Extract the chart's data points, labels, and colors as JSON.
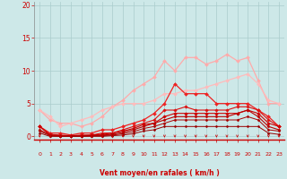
{
  "background_color": "#cde8e8",
  "grid_color": "#aacccc",
  "xlabel": "Vent moyen/en rafales ( km/h )",
  "xlabel_color": "#cc0000",
  "tick_color": "#cc0000",
  "xlim": [
    -0.5,
    23.5
  ],
  "ylim": [
    -0.5,
    20.5
  ],
  "yticks": [
    0,
    5,
    10,
    15,
    20
  ],
  "xticks": [
    0,
    1,
    2,
    3,
    4,
    5,
    6,
    7,
    8,
    9,
    10,
    11,
    12,
    13,
    14,
    15,
    16,
    17,
    18,
    19,
    20,
    21,
    22,
    23
  ],
  "series": [
    {
      "x": [
        0,
        1,
        2,
        3,
        4,
        5,
        6,
        7,
        8,
        9,
        10,
        11,
        12,
        13,
        14,
        15,
        16,
        17,
        18,
        19,
        20,
        21,
        22,
        23
      ],
      "y": [
        4,
        2.5,
        2.0,
        2.0,
        1.5,
        2.0,
        3.0,
        4.5,
        5.5,
        7.0,
        8.0,
        9.0,
        11.5,
        10.0,
        12.0,
        12.0,
        11.0,
        11.5,
        12.5,
        11.5,
        12.0,
        8.5,
        5.0,
        5.0
      ],
      "color": "#ffaaaa",
      "linewidth": 0.9,
      "marker": "D",
      "markersize": 2.0
    },
    {
      "x": [
        0,
        1,
        2,
        3,
        4,
        5,
        6,
        7,
        8,
        9,
        10,
        11,
        12,
        13,
        14,
        15,
        16,
        17,
        18,
        19,
        20,
        21,
        22,
        23
      ],
      "y": [
        4,
        3.0,
        1.5,
        2.0,
        2.5,
        3.0,
        4.0,
        4.5,
        5.0,
        5.0,
        5.0,
        5.5,
        6.5,
        6.5,
        7.0,
        7.0,
        7.5,
        8.0,
        8.5,
        9.0,
        9.5,
        8.0,
        5.5,
        5.0
      ],
      "color": "#ffbbbb",
      "linewidth": 0.9,
      "marker": "D",
      "markersize": 2.0
    },
    {
      "x": [
        0,
        1,
        2,
        3,
        4,
        5,
        6,
        7,
        8,
        9,
        10,
        11,
        12,
        13,
        14,
        15,
        16,
        17,
        18,
        19,
        20,
        21,
        22,
        23
      ],
      "y": [
        1.5,
        0.5,
        0.5,
        0.2,
        0.5,
        0.5,
        1.0,
        1.0,
        1.5,
        2.0,
        2.5,
        3.5,
        5.0,
        8.0,
        6.5,
        6.5,
        6.5,
        5.0,
        5.0,
        5.0,
        5.0,
        4.0,
        3.0,
        1.5
      ],
      "color": "#ee2222",
      "linewidth": 0.9,
      "marker": "D",
      "markersize": 2.0
    },
    {
      "x": [
        0,
        1,
        2,
        3,
        4,
        5,
        6,
        7,
        8,
        9,
        10,
        11,
        12,
        13,
        14,
        15,
        16,
        17,
        18,
        19,
        20,
        21,
        22,
        23
      ],
      "y": [
        1.5,
        0.3,
        0.2,
        0.1,
        0.2,
        0.2,
        0.5,
        0.5,
        1.0,
        1.5,
        2.0,
        2.5,
        4.0,
        4.0,
        4.5,
        4.0,
        4.0,
        4.0,
        4.0,
        4.5,
        4.5,
        4.0,
        2.5,
        1.5
      ],
      "color": "#dd1111",
      "linewidth": 0.8,
      "marker": "D",
      "markersize": 1.8
    },
    {
      "x": [
        0,
        1,
        2,
        3,
        4,
        5,
        6,
        7,
        8,
        9,
        10,
        11,
        12,
        13,
        14,
        15,
        16,
        17,
        18,
        19,
        20,
        21,
        22,
        23
      ],
      "y": [
        1.5,
        0.2,
        0.1,
        0.1,
        0.1,
        0.2,
        0.3,
        0.5,
        0.8,
        1.2,
        1.8,
        2.0,
        3.0,
        3.5,
        3.5,
        3.5,
        3.5,
        3.5,
        3.5,
        3.5,
        4.0,
        3.5,
        2.0,
        1.5
      ],
      "color": "#cc0000",
      "linewidth": 0.8,
      "marker": "D",
      "markersize": 1.8
    },
    {
      "x": [
        0,
        1,
        2,
        3,
        4,
        5,
        6,
        7,
        8,
        9,
        10,
        11,
        12,
        13,
        14,
        15,
        16,
        17,
        18,
        19,
        20,
        21,
        22,
        23
      ],
      "y": [
        1.0,
        0.2,
        0.1,
        0.1,
        0.1,
        0.1,
        0.2,
        0.3,
        0.6,
        1.0,
        1.5,
        2.0,
        2.5,
        3.0,
        3.0,
        3.0,
        3.0,
        3.0,
        3.0,
        3.5,
        4.0,
        3.0,
        1.5,
        1.0
      ],
      "color": "#bb0000",
      "linewidth": 0.8,
      "marker": "D",
      "markersize": 1.6
    },
    {
      "x": [
        0,
        1,
        2,
        3,
        4,
        5,
        6,
        7,
        8,
        9,
        10,
        11,
        12,
        13,
        14,
        15,
        16,
        17,
        18,
        19,
        20,
        21,
        22,
        23
      ],
      "y": [
        0.8,
        0.1,
        0.0,
        0.0,
        0.0,
        0.1,
        0.1,
        0.2,
        0.4,
        0.7,
        1.2,
        1.5,
        2.0,
        2.5,
        2.5,
        2.5,
        2.5,
        2.5,
        2.5,
        2.5,
        3.0,
        2.5,
        1.0,
        0.8
      ],
      "color": "#aa0000",
      "linewidth": 0.7,
      "marker": "D",
      "markersize": 1.5
    },
    {
      "x": [
        0,
        1,
        2,
        3,
        4,
        5,
        6,
        7,
        8,
        9,
        10,
        11,
        12,
        13,
        14,
        15,
        16,
        17,
        18,
        19,
        20,
        21,
        22,
        23
      ],
      "y": [
        0.5,
        0.0,
        0.0,
        0.0,
        0.0,
        0.0,
        0.0,
        0.1,
        0.2,
        0.4,
        0.8,
        1.0,
        1.5,
        1.5,
        1.5,
        1.5,
        1.5,
        1.5,
        1.5,
        1.5,
        1.5,
        1.5,
        0.5,
        0.3
      ],
      "color": "#990000",
      "linewidth": 0.7,
      "marker": "D",
      "markersize": 1.4
    }
  ],
  "wind_arrows_x": [
    0,
    1,
    2,
    3,
    4,
    5,
    6,
    7,
    8,
    9,
    10,
    11,
    12,
    13,
    14,
    15,
    16,
    17,
    18,
    19,
    20,
    21,
    22,
    23
  ]
}
